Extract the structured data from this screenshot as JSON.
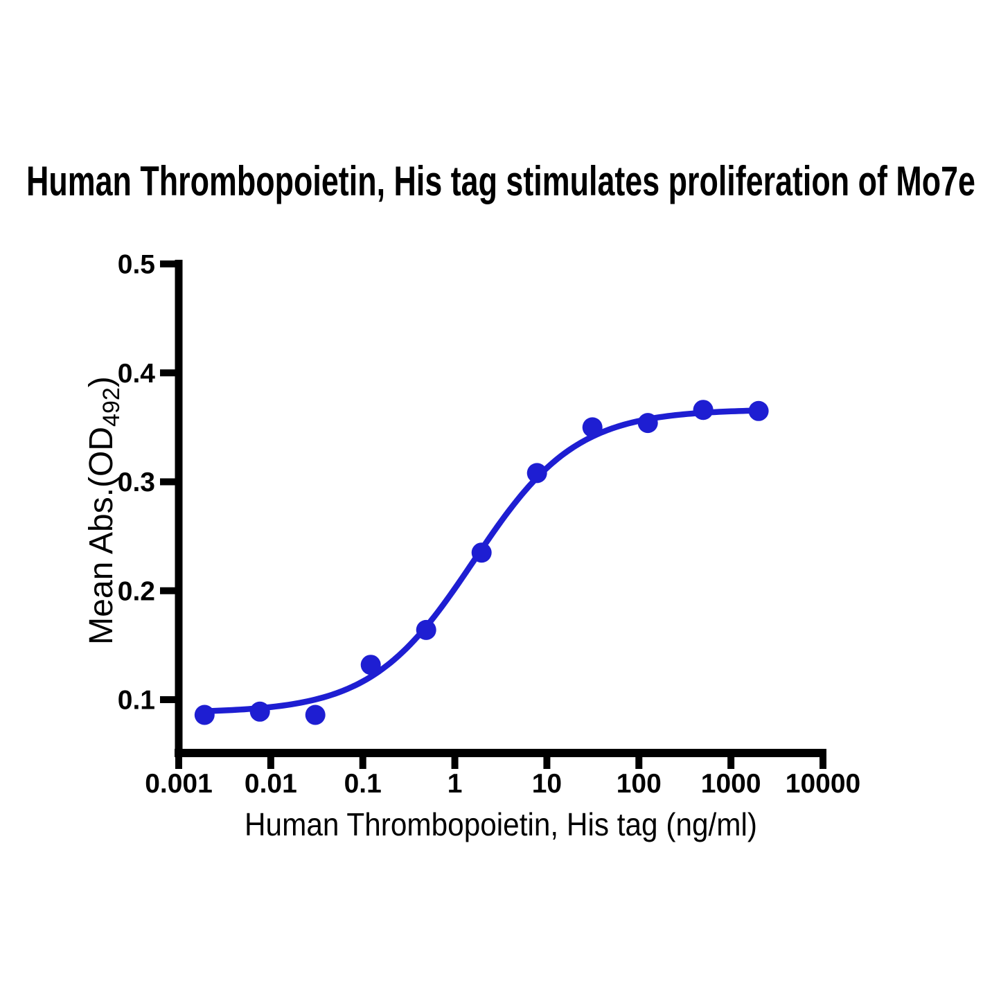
{
  "page": {
    "background": "#ffffff"
  },
  "chart_data": {
    "type": "scatter",
    "title": "Human Thrombopoietin, His tag stimulates proliferation of Mo7e",
    "xlabel": "Human Thrombopoietin, His tag (ng/ml)",
    "ylabel": {
      "pre": "Mean Abs.(OD",
      "sub": "492",
      "post": ")"
    },
    "ylabel_plain": "Mean Abs.(OD492)",
    "x_scale": "log10",
    "xlim": [
      0.001,
      10000
    ],
    "ylim": [
      0.05,
      0.5
    ],
    "grid": false,
    "legend": "none",
    "x_ticks": [
      {
        "value": 0.001,
        "label": "0.001"
      },
      {
        "value": 0.01,
        "label": "0.01"
      },
      {
        "value": 0.1,
        "label": "0.1"
      },
      {
        "value": 1,
        "label": "1"
      },
      {
        "value": 10,
        "label": "10"
      },
      {
        "value": 100,
        "label": "100"
      },
      {
        "value": 1000,
        "label": "1000"
      },
      {
        "value": 10000,
        "label": "10000"
      }
    ],
    "y_ticks": [
      {
        "value": 0.1,
        "label": "0.1"
      },
      {
        "value": 0.2,
        "label": "0.2"
      },
      {
        "value": 0.3,
        "label": "0.3"
      },
      {
        "value": 0.4,
        "label": "0.4"
      },
      {
        "value": 0.5,
        "label": "0.5"
      }
    ],
    "points": [
      {
        "x": 0.00191,
        "y": 0.086
      },
      {
        "x": 0.00763,
        "y": 0.089
      },
      {
        "x": 0.0305,
        "y": 0.086
      },
      {
        "x": 0.122,
        "y": 0.132
      },
      {
        "x": 0.488,
        "y": 0.164
      },
      {
        "x": 1.953,
        "y": 0.235
      },
      {
        "x": 7.813,
        "y": 0.308
      },
      {
        "x": 31.25,
        "y": 0.35
      },
      {
        "x": 125,
        "y": 0.354
      },
      {
        "x": 500,
        "y": 0.366
      },
      {
        "x": 2000,
        "y": 0.365
      }
    ],
    "fit_curve": {
      "model": "4PL",
      "bottom": 0.088,
      "top": 0.3665,
      "ec50": 1.6,
      "hill": 0.78
    },
    "marker_color": "#1e1ed2",
    "line_color": "#1e1ed2",
    "axis_color": "#000000"
  }
}
